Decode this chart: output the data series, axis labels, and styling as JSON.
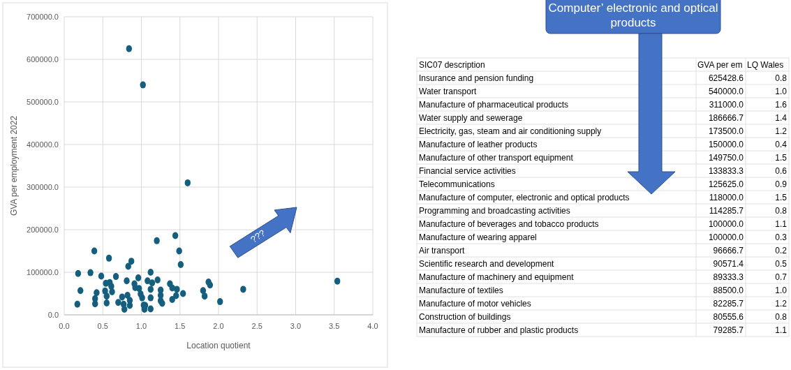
{
  "chart_data": [
    {
      "type": "scatter",
      "xlabel": "Location quotient",
      "ylabel": "GVA per employment 2022",
      "xlim": [
        0,
        4
      ],
      "ylim": [
        0,
        700000
      ],
      "xticks": [
        {
          "value": 0,
          "label": "0.0"
        },
        {
          "value": 0.5,
          "label": "0.5"
        },
        {
          "value": 1,
          "label": "1.0"
        },
        {
          "value": 1.5,
          "label": "1.5"
        },
        {
          "value": 2,
          "label": "2.0"
        },
        {
          "value": 2.5,
          "label": "2.5"
        },
        {
          "value": 3,
          "label": "3.0"
        },
        {
          "value": 3.5,
          "label": "3.5"
        },
        {
          "value": 4,
          "label": "4.0"
        }
      ],
      "yticks": [
        {
          "value": 0,
          "label": "0.0"
        },
        {
          "value": 100000,
          "label": "100000.0"
        },
        {
          "value": 200000,
          "label": "200000.0"
        },
        {
          "value": 300000,
          "label": "300000.0"
        },
        {
          "value": 400000,
          "label": "400000.0"
        },
        {
          "value": 500000,
          "label": "500000.0"
        },
        {
          "value": 600000,
          "label": "600000.0"
        },
        {
          "value": 700000,
          "label": "700000.0"
        }
      ],
      "grid": true,
      "marker": "circle",
      "annotations": [
        "???"
      ],
      "series": [
        {
          "color": "#155e7e",
          "x": [
            0.84,
            1.02,
            1.6,
            0.17,
            0.18,
            0.21,
            0.34,
            0.39,
            0.4,
            0.4,
            0.42,
            0.48,
            0.53,
            0.54,
            0.55,
            0.55,
            0.58,
            0.59,
            0.61,
            0.62,
            0.67,
            0.7,
            0.75,
            0.77,
            0.78,
            0.81,
            0.83,
            0.87,
            0.82,
            0.85,
            0.85,
            0.91,
            0.92,
            0.96,
            0.97,
            0.99,
            1.01,
            1.03,
            1.04,
            1.05,
            1.08,
            1.12,
            1.12,
            1.12,
            1.12,
            1.14,
            1.2,
            1.21,
            1.25,
            1.25,
            1.25,
            1.27,
            1.37,
            1.4,
            1.4,
            1.44,
            1.45,
            1.46,
            1.49,
            1.51,
            1.54,
            1.8,
            1.82,
            1.87,
            1.89,
            2.02,
            2.32,
            3.54
          ],
          "values": [
            625000,
            540000,
            310000,
            25000,
            97000,
            57000,
            99000,
            150000,
            38000,
            26000,
            52000,
            91000,
            56000,
            74000,
            44000,
            28000,
            133000,
            76000,
            67000,
            54000,
            90000,
            29000,
            42000,
            25000,
            13000,
            80000,
            114000,
            126000,
            46000,
            34000,
            22000,
            73000,
            64000,
            87000,
            62000,
            49000,
            40000,
            23000,
            13000,
            22000,
            80000,
            100000,
            60000,
            40000,
            14000,
            75000,
            174000,
            82000,
            58000,
            46000,
            33000,
            27000,
            73000,
            63000,
            36000,
            186000,
            45000,
            60000,
            150000,
            118000,
            50000,
            57000,
            44000,
            77000,
            70000,
            31000,
            60000,
            79000
          ]
        }
      ]
    },
    {
      "type": "other",
      "title": "SIC07 description",
      "annotations": [
        "Computer’ electronic and optical products"
      ],
      "categories": [
        "Insurance and pension funding",
        "Water transport",
        "Manufacture of pharmaceutical products",
        "Water supply and sewerage",
        "Electricity, gas, steam and air conditioning supply",
        "Manufacture of leather products",
        "Manufacture of other transport equipment",
        "Financial service activities",
        "Telecommunications",
        "Manufacture of computer, electronic and optical products",
        "Programming and broadcasting activities",
        "Manufacture of beverages and tobacco products",
        "Manufacture of wearing apparel",
        "Air transport",
        "Scientific research and development",
        "Manufacture of machinery and equipment",
        "Manufacture of textiles",
        "Manufacture of motor vehicles",
        "Construction of buildings",
        "Manufacture of rubber and plastic products"
      ],
      "series": [
        {
          "name": "GVA per em",
          "values": [
            625428.6,
            540000.0,
            311000.0,
            186666.7,
            173500.0,
            150000.0,
            149750.0,
            133833.3,
            125625.0,
            118000.0,
            114285.7,
            100000.0,
            100000.0,
            96666.7,
            90571.4,
            89333.3,
            88500.0,
            82285.7,
            80555.6,
            79285.7
          ],
          "value_labels": [
            "625428.6",
            "540000.0",
            "311000.0",
            "186666.7",
            "173500.0",
            "150000.0",
            "149750.0",
            "133833.3",
            "125625.0",
            "118000.0",
            "114285.7",
            "100000.0",
            "100000.0",
            "96666.7",
            "90571.4",
            "89333.3",
            "88500.0",
            "82285.7",
            "80555.6",
            "79285.7"
          ]
        },
        {
          "name": "LQ Wales",
          "values": [
            0.8,
            1.0,
            1.6,
            1.4,
            1.2,
            0.4,
            1.5,
            0.6,
            0.9,
            1.5,
            0.8,
            1.1,
            0.3,
            0.2,
            0.5,
            0.7,
            1.0,
            1.2,
            0.8,
            1.1
          ],
          "value_labels": [
            "0.8",
            "1.0",
            "1.6",
            "1.4",
            "1.2",
            "0.4",
            "1.5",
            "0.6",
            "0.9",
            "1.5",
            "0.8",
            "1.1",
            "0.3",
            "0.2",
            "0.5",
            "0.7",
            "1.0",
            "1.2",
            "0.8",
            "1.1"
          ]
        }
      ]
    }
  ]
}
